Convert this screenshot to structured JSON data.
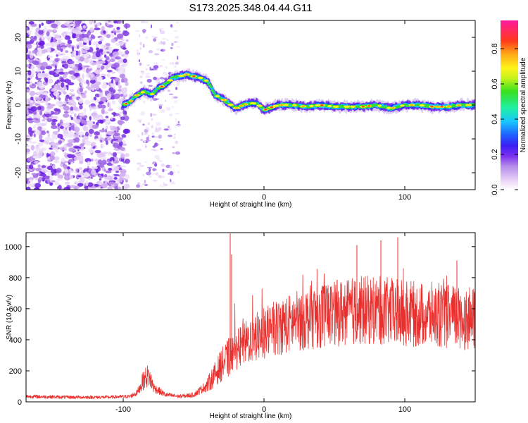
{
  "title": "S173.2025.348.04.44.G11",
  "chart_data": [
    {
      "type": "heatmap",
      "xlabel": "Height of straight line (km)",
      "ylabel": "Frequency (Hz)",
      "xlim": [
        -169,
        150
      ],
      "ylim": [
        -25,
        25
      ],
      "xticks": [
        -100,
        0,
        100
      ],
      "yticks": [
        -20,
        -10,
        0,
        10,
        20
      ],
      "colorbar": {
        "label": "Normalized spectral amplitude",
        "range": [
          0.0,
          0.96
        ],
        "ticks": [
          0.0,
          0.2,
          0.4,
          0.6,
          0.8
        ]
      },
      "ridge": {
        "x": [
          -100,
          -95,
          -90,
          -85,
          -80,
          -75,
          -70,
          -65,
          -60,
          -55,
          -50,
          -45,
          -40,
          -35,
          -30,
          -25,
          -20,
          -15,
          -10,
          -5,
          0,
          10,
          20,
          30,
          40,
          50,
          60,
          70,
          80,
          90,
          100,
          110,
          120,
          130,
          140,
          150
        ],
        "y": [
          0,
          1,
          3,
          4,
          3,
          5,
          6,
          8,
          8.5,
          9,
          8.5,
          8,
          7,
          3,
          2,
          0.5,
          -1,
          0,
          0.5,
          0.5,
          -1.5,
          0,
          0,
          -0.5,
          0,
          -0.5,
          -0.5,
          -0.5,
          0,
          -1,
          0,
          0,
          -0.5,
          -0.5,
          0,
          0
        ]
      },
      "noise_region_x": [
        -169,
        -97
      ],
      "secondary_noise_x": [
        -90,
        -60
      ]
    },
    {
      "type": "line",
      "series": [
        {
          "name": "SNR",
          "color": "#e8312f"
        }
      ],
      "xlabel": "Height of straight line (km)",
      "ylabel": "SNR (10 * v/v)",
      "xlim": [
        -169,
        150
      ],
      "ylim": [
        0,
        1090
      ],
      "xticks": [
        -100,
        0,
        100
      ],
      "yticks": [
        0,
        200,
        400,
        600,
        800,
        1000
      ],
      "trend": {
        "x": [
          -169,
          -140,
          -110,
          -95,
          -90,
          -85,
          -82,
          -78,
          -70,
          -60,
          -50,
          -40,
          -30,
          -20,
          -10,
          0,
          10,
          20,
          30,
          40,
          50,
          60,
          70,
          80,
          90,
          100,
          110,
          120,
          130,
          140,
          150
        ],
        "y": [
          35,
          30,
          30,
          35,
          60,
          150,
          170,
          90,
          45,
          35,
          45,
          110,
          240,
          330,
          400,
          440,
          480,
          510,
          540,
          560,
          570,
          580,
          590,
          590,
          580,
          570,
          560,
          560,
          550,
          540,
          530
        ]
      },
      "spikes": [
        {
          "x": -24,
          "y": 1085
        },
        {
          "x": -23,
          "y": 950
        },
        {
          "x": 95,
          "y": 1060
        },
        {
          "x": 83,
          "y": 1040
        },
        {
          "x": 66,
          "y": 1010
        },
        {
          "x": 137,
          "y": 910
        }
      ]
    }
  ]
}
